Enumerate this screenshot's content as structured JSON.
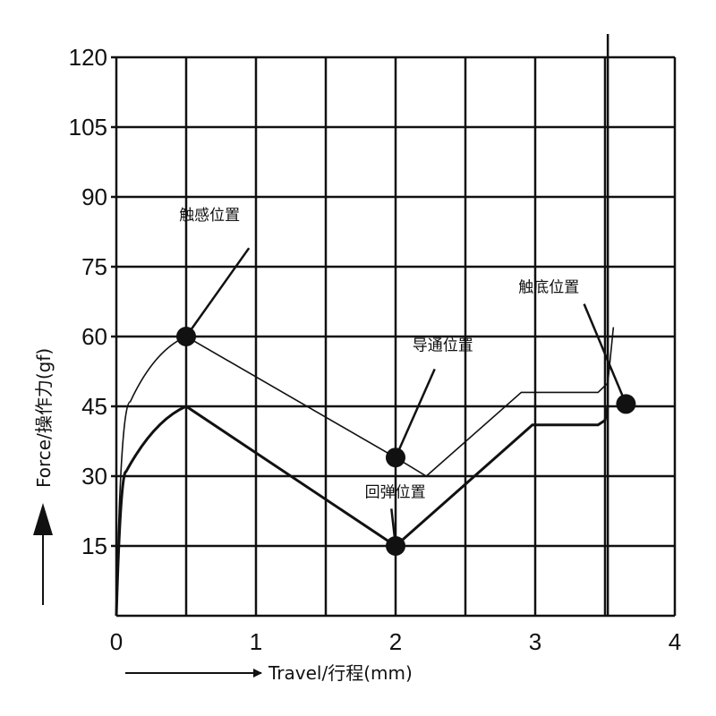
{
  "chart_data": {
    "type": "line",
    "xlabel": "Travel/行程(mm)",
    "ylabel": "Force/操作力(gf)",
    "xlim": [
      0,
      4
    ],
    "ylim": [
      0,
      120
    ],
    "x_ticks": [
      "0",
      "1",
      "2",
      "3",
      "4"
    ],
    "y_ticks": [
      "15",
      "30",
      "45",
      "60",
      "75",
      "90",
      "105",
      "120"
    ],
    "grid": true,
    "series": [
      {
        "line": "thin",
        "points": [
          [
            0,
            0
          ],
          [
            0.03,
            35
          ],
          [
            0.1,
            46
          ],
          [
            0.3,
            57
          ],
          [
            0.5,
            60
          ],
          [
            2.0,
            34
          ],
          [
            2.22,
            30
          ],
          [
            2.9,
            48
          ],
          [
            3.45,
            48
          ],
          [
            3.52,
            50
          ],
          [
            3.56,
            62
          ]
        ]
      },
      {
        "line": "thick",
        "points": [
          [
            0,
            0
          ],
          [
            0.03,
            25
          ],
          [
            0.07,
            31
          ],
          [
            0.3,
            41
          ],
          [
            0.5,
            45
          ],
          [
            2.0,
            15
          ],
          [
            2.98,
            41
          ],
          [
            3.45,
            41
          ],
          [
            3.5,
            42
          ],
          [
            3.52,
            45
          ]
        ]
      }
    ],
    "annotations": [
      {
        "text": "触感位置",
        "point": [
          0.5,
          60
        ]
      },
      {
        "text": "导通位置",
        "point": [
          2.0,
          34
        ]
      },
      {
        "text": "回弹位置",
        "point": [
          2.0,
          15
        ]
      },
      {
        "text": "触底位置",
        "point": [
          3.65,
          45.5
        ]
      }
    ]
  }
}
